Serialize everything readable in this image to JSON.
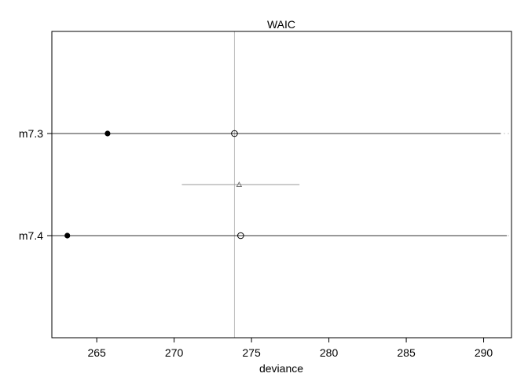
{
  "chart_data": {
    "type": "scatter",
    "title": "WAIC",
    "xlabel": "deviance",
    "ylabel": "",
    "xlim": [
      262.1,
      291.8
    ],
    "x_ticks": [
      265,
      270,
      275,
      280,
      285,
      290
    ],
    "grid": false,
    "models": [
      {
        "name": "m7.3",
        "in_sample_deviance": 265.7,
        "waic": 273.9,
        "interval": [
          262.1,
          291.1
        ]
      },
      {
        "name": "m7.4",
        "in_sample_deviance": 263.1,
        "waic": 274.3,
        "interval": [
          262.1,
          291.5
        ]
      }
    ],
    "difference": {
      "center": 274.2,
      "interval": [
        270.5,
        278.1
      ]
    },
    "reference_line_x": 273.9
  }
}
